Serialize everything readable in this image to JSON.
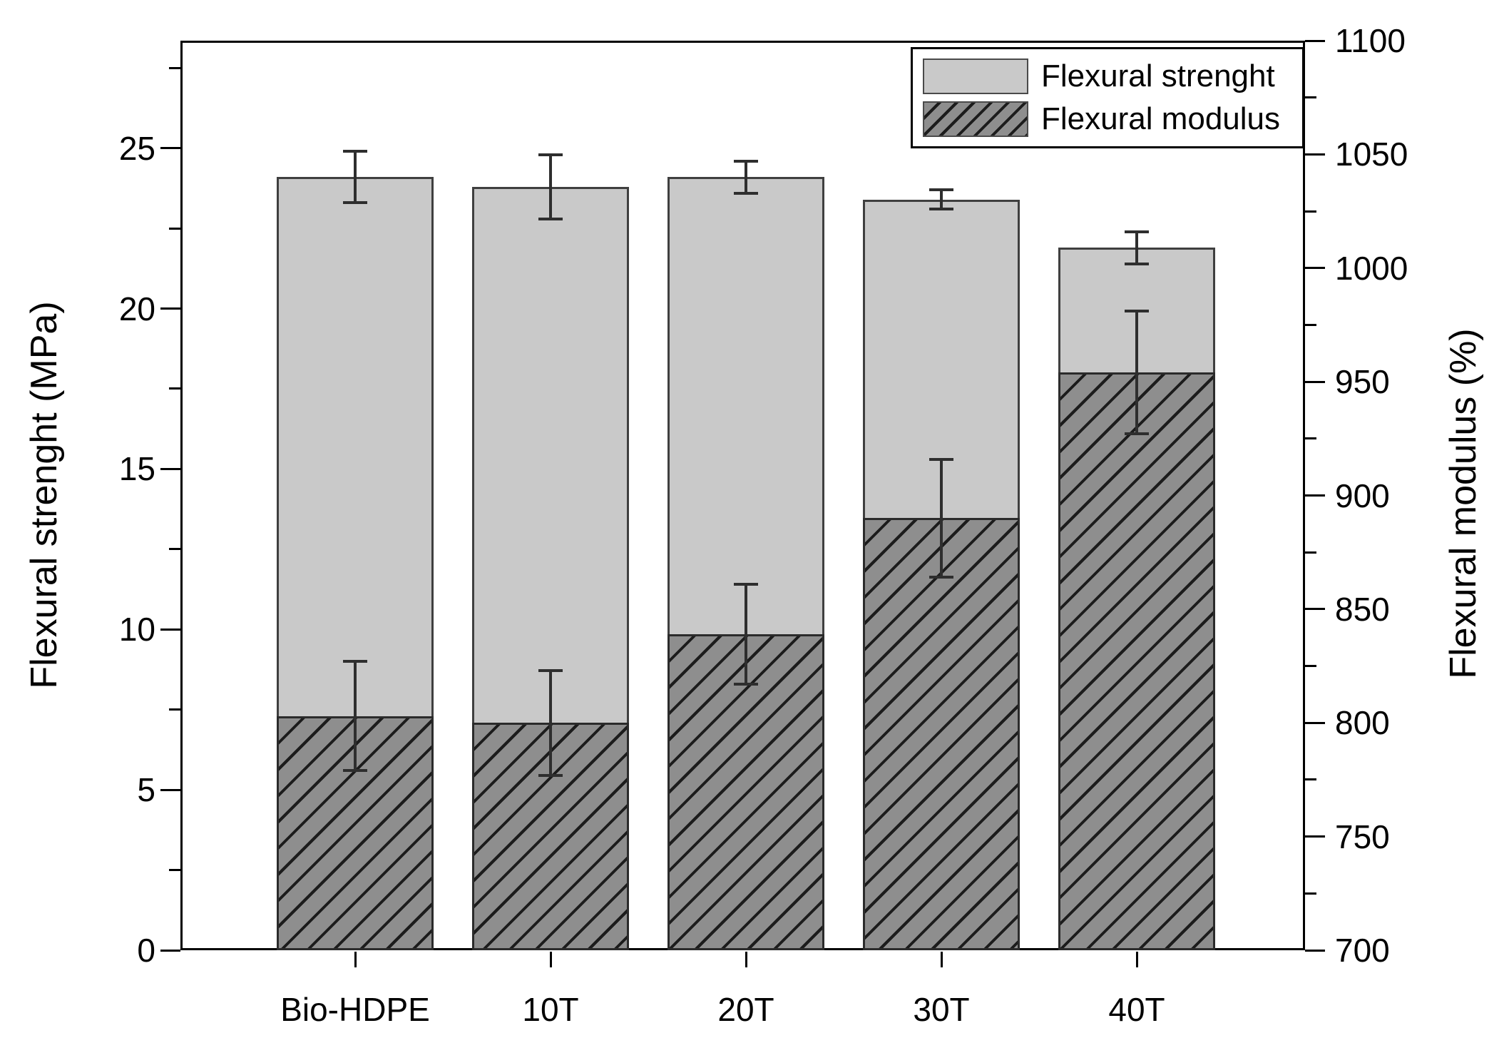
{
  "chart_data": {
    "type": "bar",
    "title": "",
    "categories": [
      "Bio-HDPE",
      "10T",
      "20T",
      "30T",
      "40T"
    ],
    "series": [
      {
        "name": "Flexural strenght",
        "axis": "left",
        "unit": "MPa",
        "style": "solid-light-gray",
        "values": [
          24.1,
          23.8,
          24.1,
          23.4,
          21.9
        ],
        "errors": [
          0.8,
          1.0,
          0.5,
          0.3,
          0.5
        ]
      },
      {
        "name": "Flexural modulus",
        "axis": "right",
        "unit": "%",
        "style": "hatched-dark-gray",
        "values": [
          803,
          800,
          839,
          890,
          954
        ],
        "errors": [
          24,
          23,
          22,
          26,
          27
        ]
      }
    ],
    "left_axis": {
      "label": "Flexural strenght (MPa)",
      "min": 0,
      "max_at_top": 28.35,
      "major_ticks": [
        0,
        5,
        10,
        15,
        20,
        25
      ],
      "minor_step": 2.5
    },
    "right_axis": {
      "label": "Flexural modulus (%)",
      "min": 700,
      "max": 1100,
      "major_ticks": [
        700,
        750,
        800,
        850,
        900,
        950,
        1000,
        1050,
        1100
      ],
      "minor_step": 25
    },
    "legend_position": "top-right",
    "grid": false,
    "bar_layout": "overlay",
    "colors": {
      "strength_fill": "#c9c9c9",
      "strength_border": "#3f3f3f",
      "modulus_fill": "#8e8e8e",
      "modulus_hatch": "#1c1c1c",
      "modulus_border": "#2b2b2b",
      "error_bar": "#2e2e2e",
      "axis": "#000000",
      "background": "#ffffff"
    }
  }
}
